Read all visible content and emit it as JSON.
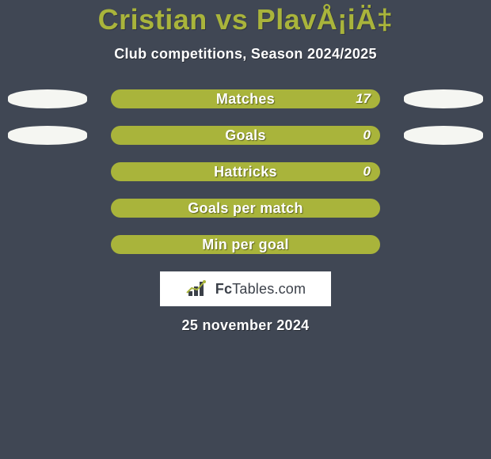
{
  "colors": {
    "background": "#404754",
    "accent": "#a9b43b",
    "ellipse": "#f5f6f2",
    "text_light": "#ffffff"
  },
  "typography": {
    "title_fontsize": 36,
    "subtitle_fontsize": 18,
    "label_fontsize": 18,
    "value_fontsize": 17,
    "date_fontsize": 18,
    "title_weight": 900,
    "label_weight": 800
  },
  "header": {
    "title": "Cristian vs PlavÅ¡iÄ‡",
    "subtitle": "Club competitions, Season 2024/2025"
  },
  "ellipse_left_width": 100,
  "ellipse_right_width": 100,
  "rows": [
    {
      "label": "Matches",
      "value": "17",
      "left_ellipse": true,
      "right_ellipse": true
    },
    {
      "label": "Goals",
      "value": "0",
      "left_ellipse": true,
      "right_ellipse": true
    },
    {
      "label": "Hattricks",
      "value": "0",
      "left_ellipse": false,
      "right_ellipse": false
    },
    {
      "label": "Goals per match",
      "value": "",
      "left_ellipse": false,
      "right_ellipse": false
    },
    {
      "label": "Min per goal",
      "value": "",
      "left_ellipse": false,
      "right_ellipse": false
    }
  ],
  "logo": {
    "fc": "Fc",
    "tables": "Tables",
    "com": ".com"
  },
  "date": "25 november 2024"
}
